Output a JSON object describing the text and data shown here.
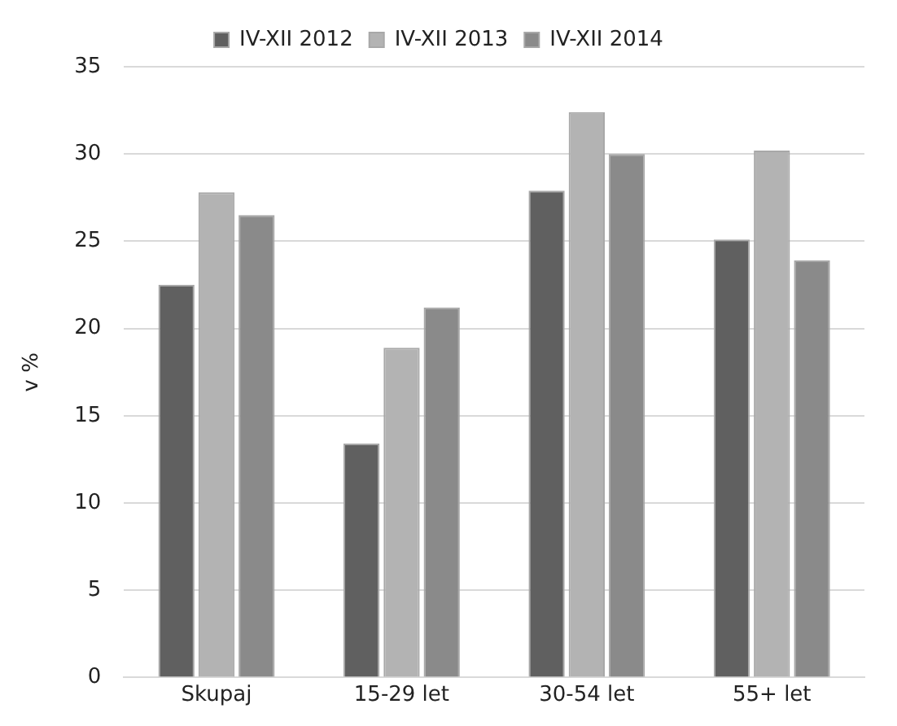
{
  "chart_data": {
    "type": "bar",
    "ylabel": "v %",
    "categories": [
      "Skupaj",
      "15-29 let",
      "30-54 let",
      "55+ let"
    ],
    "series": [
      {
        "name": "IV-XII 2012",
        "color": "#606060",
        "values": [
          22.5,
          13.4,
          27.9,
          25.1
        ]
      },
      {
        "name": "IV-XII 2013",
        "color": "#b3b3b3",
        "values": [
          27.8,
          18.9,
          32.4,
          30.2
        ]
      },
      {
        "name": "IV-XII 2014",
        "color": "#8a8a8a",
        "values": [
          26.5,
          21.2,
          30.0,
          23.9
        ]
      }
    ],
    "ylim": [
      0,
      35
    ],
    "yticks": [
      0,
      5,
      10,
      15,
      20,
      25,
      30,
      35
    ],
    "grid": "y",
    "legend": "top"
  }
}
